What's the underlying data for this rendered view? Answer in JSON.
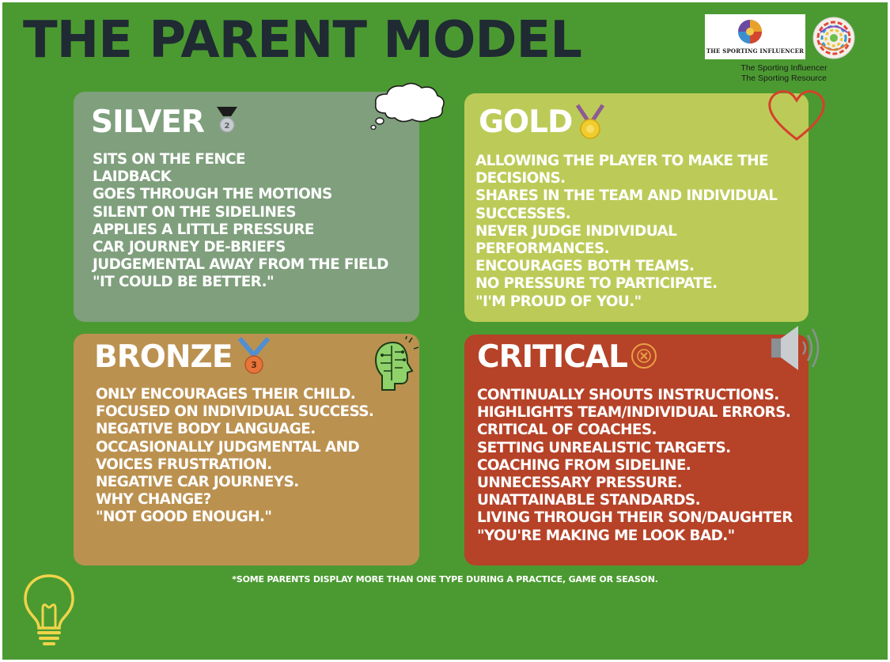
{
  "title": "THE PARENT MODEL",
  "logo": {
    "text": "THE SPORTING INFLUENCER"
  },
  "credits": [
    "The Sporting Influencer",
    "The Sporting Resource"
  ],
  "colors": {
    "background": "#4b9a31",
    "title": "#1f2a33",
    "silver": "#7f9f7d",
    "gold": "#bccb58",
    "bronze": "#bb9150",
    "critical": "#b64228",
    "lightbulb": "#f0d44a",
    "heart": "#d6402c"
  },
  "cards": {
    "silver": {
      "title": "SILVER",
      "icon": "silver-medal-icon",
      "items": [
        "SITS ON THE FENCE",
        "LAIDBACK",
        "GOES THROUGH THE MOTIONS",
        "SILENT ON THE SIDELINES",
        "APPLIES A LITTLE PRESSURE",
        "CAR JOURNEY DE-BRIEFS",
        "JUDGEMENTAL AWAY FROM THE FIELD",
        "\"IT COULD BE BETTER.\""
      ]
    },
    "gold": {
      "title": "GOLD",
      "icon": "gold-medal-icon",
      "items": [
        "ALLOWING THE PLAYER TO MAKE THE DECISIONS.",
        "SHARES IN THE TEAM AND INDIVIDUAL SUCCESSES.",
        "NEVER JUDGE INDIVIDUAL PERFORMANCES.",
        "ENCOURAGES BOTH TEAMS.",
        "NO PRESSURE TO PARTICIPATE.",
        "\"I'M PROUD OF YOU.\""
      ]
    },
    "bronze": {
      "title": "BRONZE",
      "icon": "bronze-medal-icon",
      "items": [
        "ONLY ENCOURAGES THEIR CHILD.",
        "FOCUSED ON INDIVIDUAL SUCCESS.",
        "NEGATIVE BODY LANGUAGE.",
        "OCCASIONALLY JUDGMENTAL AND VOICES FRUSTRATION.",
        "NEGATIVE CAR JOURNEYS.",
        "WHY CHANGE?",
        "\"NOT GOOD ENOUGH.\""
      ]
    },
    "critical": {
      "title": "CRITICAL",
      "icon": "cross-circle-icon",
      "items": [
        "CONTINUALLY SHOUTS INSTRUCTIONS.",
        "HIGHLIGHTS TEAM/INDIVIDUAL ERRORS.",
        "CRITICAL OF COACHES.",
        "SETTING UNREALISTIC TARGETS.",
        "COACHING FROM SIDELINE.",
        "UNNECESSARY PRESSURE.",
        "UNATTAINABLE STANDARDS.",
        "LIVING THROUGH THEIR SON/DAUGHTER",
        "\"YOU'RE MAKING ME LOOK BAD.\""
      ]
    }
  },
  "medal_numbers": {
    "silver": "2",
    "bronze": "3"
  },
  "decorations": [
    "thought-cloud-icon",
    "heart-icon",
    "brain-icon",
    "speaker-icon",
    "lightbulb-icon"
  ],
  "footnote": "*SOME PARENTS DISPLAY MORE THAN ONE TYPE DURING A PRACTICE, GAME OR SEASON."
}
